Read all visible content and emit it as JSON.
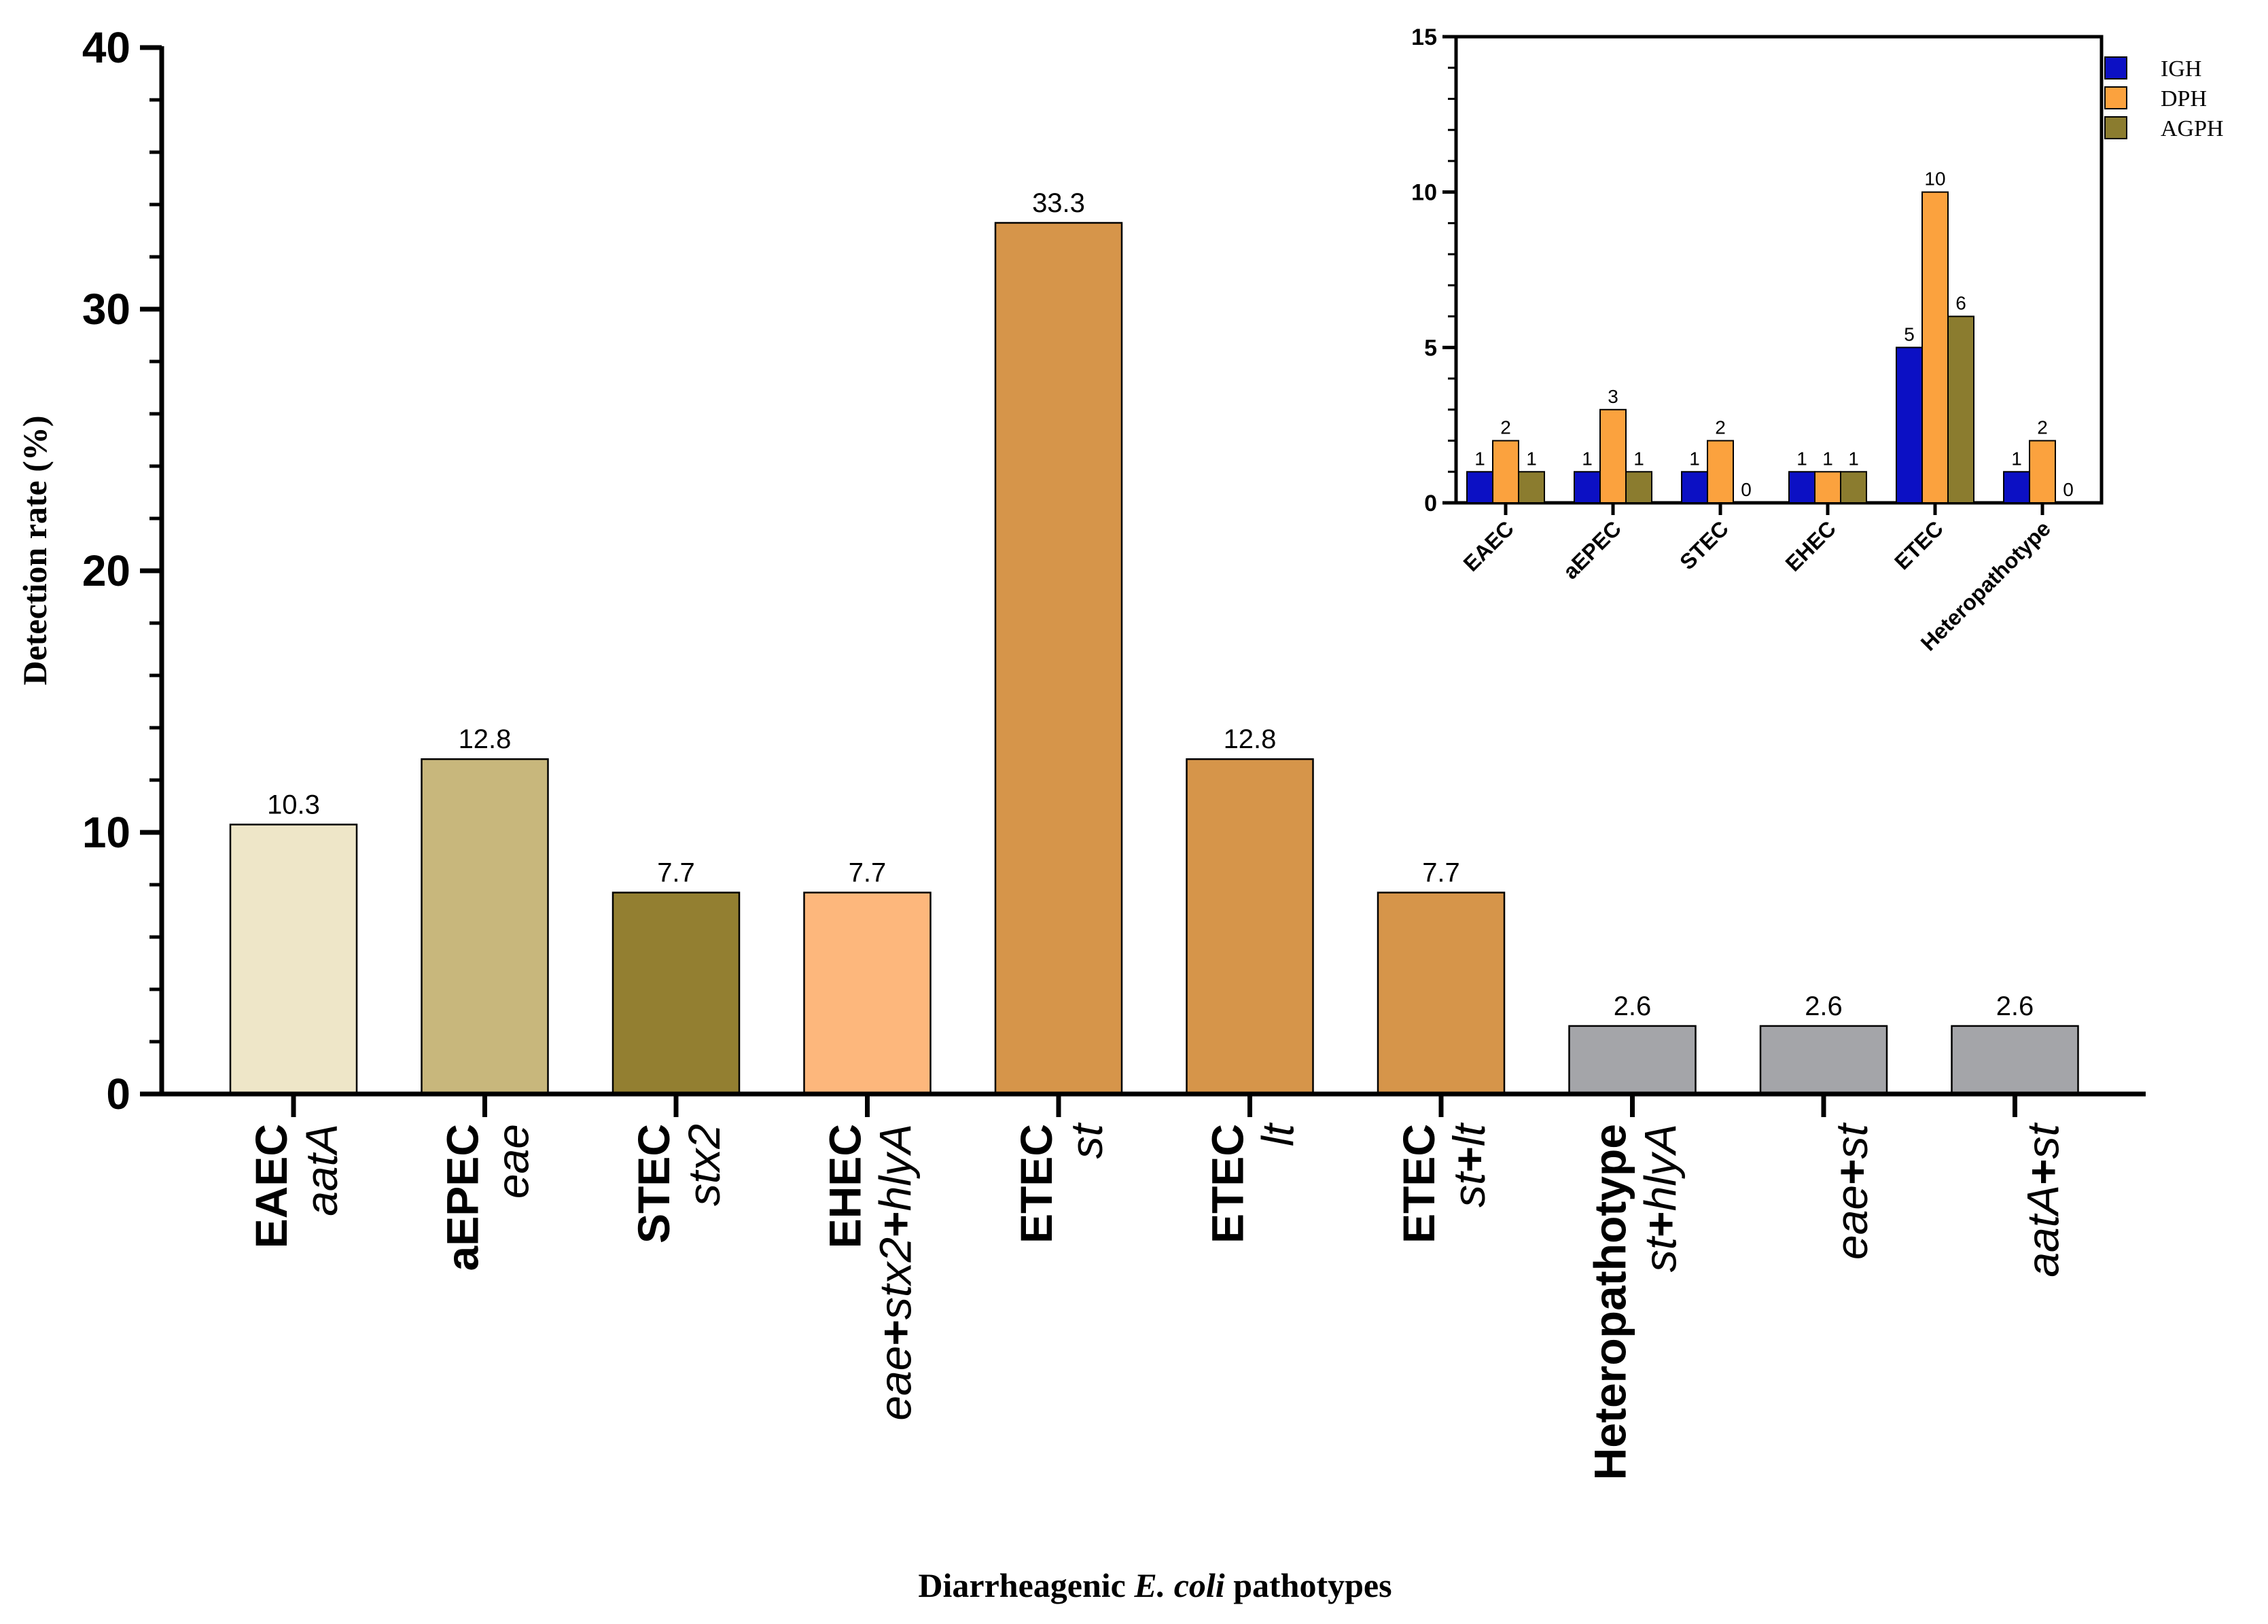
{
  "chart_data": [
    {
      "type": "bar",
      "title": "",
      "xlabel_parts": [
        "Diarrheagenic ",
        "E. coli",
        " pathotypes"
      ],
      "ylabel": "Detection rate (%)",
      "ylim": [
        0,
        40
      ],
      "yticks": [
        0,
        10,
        20,
        30,
        40
      ],
      "categories": [
        {
          "pathotype": "EAEC",
          "gene_parts": [
            {
              "t": "aatA",
              "i": true
            }
          ]
        },
        {
          "pathotype": "aEPEC",
          "gene_parts": [
            {
              "t": "eae",
              "i": true
            }
          ]
        },
        {
          "pathotype": "STEC",
          "gene_parts": [
            {
              "t": "stx2",
              "i": true
            }
          ]
        },
        {
          "pathotype": "EHEC",
          "gene_parts": [
            {
              "t": "eae",
              "i": true
            },
            {
              "t": "+",
              "i": false
            },
            {
              "t": "stx2",
              "i": true
            },
            {
              "t": "+",
              "i": false
            },
            {
              "t": "hlyA",
              "i": true
            }
          ]
        },
        {
          "pathotype": "ETEC",
          "gene_parts": [
            {
              "t": "st",
              "i": true
            }
          ]
        },
        {
          "pathotype": "ETEC",
          "gene_parts": [
            {
              "t": "lt",
              "i": true
            }
          ]
        },
        {
          "pathotype": "ETEC",
          "gene_parts": [
            {
              "t": "st",
              "i": true
            },
            {
              "t": "+",
              "i": false
            },
            {
              "t": "lt",
              "i": true
            }
          ]
        },
        {
          "pathotype": "Heteropathotype",
          "gene_parts": [
            {
              "t": "st",
              "i": true
            },
            {
              "t": "+",
              "i": false
            },
            {
              "t": "hlyA",
              "i": true
            }
          ]
        },
        {
          "pathotype": "",
          "gene_parts": [
            {
              "t": "eae",
              "i": true
            },
            {
              "t": "+",
              "i": false
            },
            {
              "t": "st",
              "i": true
            }
          ]
        },
        {
          "pathotype": "",
          "gene_parts": [
            {
              "t": "aatA",
              "i": true
            },
            {
              "t": "+",
              "i": false
            },
            {
              "t": "st",
              "i": true
            }
          ]
        }
      ],
      "values": [
        10.3,
        12.8,
        7.7,
        7.7,
        33.3,
        12.8,
        7.7,
        2.6,
        2.6,
        2.6
      ],
      "value_labels": [
        "10.3",
        "12.8",
        "7.7",
        "7.7",
        "33.3",
        "12.8",
        "7.7",
        "2.6",
        "2.6",
        "2.6"
      ],
      "bar_colors": [
        "#EEE6C8",
        "#C8B77C",
        "#937F31",
        "#FDB77C",
        "#D6954A",
        "#D6954A",
        "#D6954A",
        "#A4A5A9",
        "#A4A5A9",
        "#A4A5A9"
      ]
    },
    {
      "type": "bar",
      "inset": true,
      "ylim": [
        0,
        15
      ],
      "yticks": [
        0,
        5,
        10,
        15
      ],
      "categories": [
        "EAEC",
        "aEPEC",
        "STEC",
        "EHEC",
        "ETEC",
        "Heteropathotype"
      ],
      "legend_position": "top-right",
      "series": [
        {
          "name": "IGH",
          "color": "#0C10C4",
          "values": [
            1,
            1,
            1,
            1,
            5,
            1
          ],
          "labels": [
            "1",
            "1",
            "1",
            "1",
            "5",
            "1"
          ]
        },
        {
          "name": "DPH",
          "color": "#FBA23E",
          "values": [
            2,
            3,
            2,
            1,
            10,
            2
          ],
          "labels": [
            "2",
            "3",
            "2",
            "1",
            "10",
            "2"
          ]
        },
        {
          "name": "AGPH",
          "color": "#8B7C2F",
          "values": [
            1,
            1,
            0,
            1,
            6,
            0
          ],
          "labels": [
            "1",
            "1",
            "0",
            "1",
            "6",
            "0"
          ]
        }
      ]
    }
  ]
}
